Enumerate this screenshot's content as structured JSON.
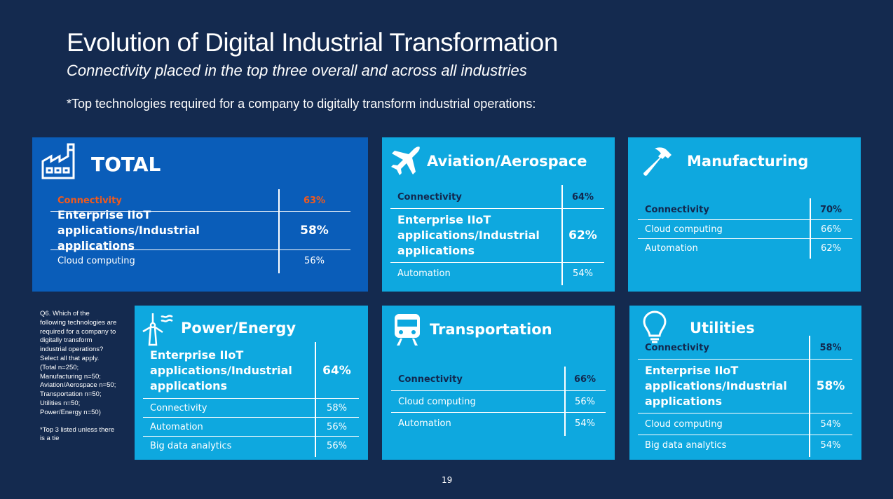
{
  "slide": {
    "title": "Evolution of Digital Industrial Transformation",
    "subtitle": "Connectivity placed in the top three overall and across all industries",
    "question": "*Top technologies required for a company to digitally transform industrial operations:",
    "page_number": "19"
  },
  "note": {
    "question_text": "Q6. Which of the following technologies are required for a company to digitally transform industrial operations? Select all that apply. (Total n=250; Manufacturing n=50; Aviation/Aerospace n=50; Transportation n=50; Utilities n=50; Power/Energy n=50)",
    "footnote": "*Top 3 listed unless there is a tie"
  },
  "colors": {
    "background": "#142a4f",
    "total_panel": "#0a5db9",
    "industry_panel": "#0ea8df",
    "highlight": "#f25a1c",
    "dark_text": "#12284e"
  },
  "panels": [
    {
      "id": "total",
      "title": "TOTAL",
      "icon": "factory-icon",
      "rows": [
        {
          "label": "Connectivity",
          "value": "63%",
          "style": "highlight"
        },
        {
          "label": "Enterprise IIoT applications/Industrial applications",
          "value": "58%",
          "style": "large"
        },
        {
          "label": "Cloud computing",
          "value": "56%",
          "style": "normal"
        }
      ]
    },
    {
      "id": "aviation",
      "title": "Aviation/Aerospace",
      "icon": "airplane-icon",
      "rows": [
        {
          "label": "Connectivity",
          "value": "64%",
          "style": "dark"
        },
        {
          "label": "Enterprise IIoT applications/Industrial applications",
          "value": "62%",
          "style": "large"
        },
        {
          "label": "Automation",
          "value": "54%",
          "style": "normal"
        }
      ]
    },
    {
      "id": "manufacturing",
      "title": "Manufacturing",
      "icon": "hammer-icon",
      "rows": [
        {
          "label": "Connectivity",
          "value": "70%",
          "style": "dark"
        },
        {
          "label": "Cloud computing",
          "value": "66%",
          "style": "normal"
        },
        {
          "label": "Automation",
          "value": "62%",
          "style": "normal"
        }
      ]
    },
    {
      "id": "power",
      "title": "Power/Energy",
      "icon": "wind-turbine-icon",
      "rows": [
        {
          "label": "Enterprise IIoT applications/Industrial applications",
          "value": "64%",
          "style": "large"
        },
        {
          "label": "Connectivity",
          "value": "58%",
          "style": "normal"
        },
        {
          "label": "Automation",
          "value": "56%",
          "style": "normal"
        },
        {
          "label": "Big data analytics",
          "value": "56%",
          "style": "normal"
        }
      ]
    },
    {
      "id": "transportation",
      "title": "Transportation",
      "icon": "train-icon",
      "rows": [
        {
          "label": "Connectivity",
          "value": "66%",
          "style": "dark"
        },
        {
          "label": "Cloud computing",
          "value": "56%",
          "style": "normal"
        },
        {
          "label": "Automation",
          "value": "54%",
          "style": "normal"
        }
      ]
    },
    {
      "id": "utilities",
      "title": "Utilities",
      "icon": "lightbulb-icon",
      "rows": [
        {
          "label": "Connectivity",
          "value": "58%",
          "style": "dark"
        },
        {
          "label": "Enterprise IIoT applications/Industrial applications",
          "value": "58%",
          "style": "large"
        },
        {
          "label": "Cloud computing",
          "value": "54%",
          "style": "normal"
        },
        {
          "label": "Big data analytics",
          "value": "54%",
          "style": "normal"
        }
      ]
    }
  ]
}
